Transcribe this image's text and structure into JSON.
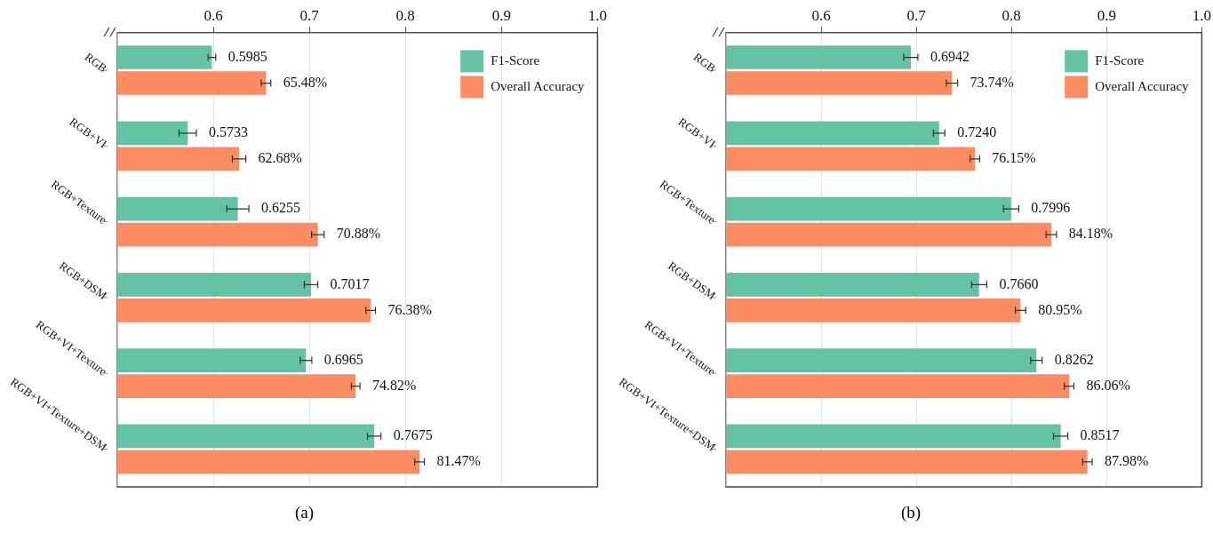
{
  "chart_data": [
    {
      "type": "bar",
      "orientation": "horizontal",
      "categories": [
        "RGB",
        "RGB+VI",
        "RGB+Texture",
        "RGB+DSM",
        "RGB+VI+Texture",
        "RGB+VI+Texture+DSM"
      ],
      "series": [
        {
          "name": "F1-Score",
          "color": "#66c2a5",
          "values": [
            0.5985,
            0.5733,
            0.6255,
            0.7017,
            0.6965,
            0.7675
          ],
          "errors": [
            0.004,
            0.009,
            0.0115,
            0.007,
            0.006,
            0.007
          ],
          "value_labels": [
            "0.5985",
            "0.5733",
            "0.6255",
            "0.7017",
            "0.6965",
            "0.7675"
          ]
        },
        {
          "name": "Overall Accuracy",
          "color": "#fc8d62",
          "values": [
            0.6548,
            0.6268,
            0.7088,
            0.7638,
            0.7482,
            0.8147
          ],
          "errors": [
            0.005,
            0.007,
            0.0065,
            0.005,
            0.0045,
            0.005
          ],
          "value_labels": [
            "65.48%",
            "62.68%",
            "70.88%",
            "76.38%",
            "74.82%",
            "81.47%"
          ]
        }
      ],
      "xlim": [
        0.5,
        1.0
      ],
      "xticks": [
        0.6,
        0.7,
        0.8,
        0.9,
        {
          "value": 1.0,
          "label": "1.0"
        }
      ],
      "grid": "x",
      "legend": "top right",
      "annotations": [
        "(a)"
      ]
    },
    {
      "type": "bar",
      "orientation": "horizontal",
      "categories": [
        "RGB",
        "RGB+VI",
        "RGB+Texture",
        "RGB+DSM",
        "RGB+VI+Texture",
        "RGB+VI+Texture+DSM"
      ],
      "series": [
        {
          "name": "F1-Score",
          "color": "#66c2a5",
          "values": [
            0.6942,
            0.724,
            0.7996,
            0.766,
            0.8262,
            0.8517
          ],
          "errors": [
            0.0075,
            0.006,
            0.008,
            0.008,
            0.006,
            0.0075
          ],
          "value_labels": [
            "0.6942",
            "0.7240",
            "0.7996",
            "0.7660",
            "0.8262",
            "0.8517"
          ]
        },
        {
          "name": "Overall Accuracy",
          "color": "#fc8d62",
          "values": [
            0.7374,
            0.7615,
            0.8418,
            0.8095,
            0.8606,
            0.8798
          ],
          "errors": [
            0.006,
            0.005,
            0.0055,
            0.0055,
            0.005,
            0.005
          ],
          "value_labels": [
            "73.74%",
            "76.15%",
            "84.18%",
            "80.95%",
            "86.06%",
            "87.98%"
          ]
        }
      ],
      "xlim": [
        0.5,
        1.0
      ],
      "xticks": [
        0.6,
        0.7,
        0.8,
        0.9,
        {
          "value": 1.0,
          "label": "1.0"
        }
      ],
      "grid": "x",
      "legend": "top right",
      "annotations": [
        "(b)"
      ]
    }
  ]
}
